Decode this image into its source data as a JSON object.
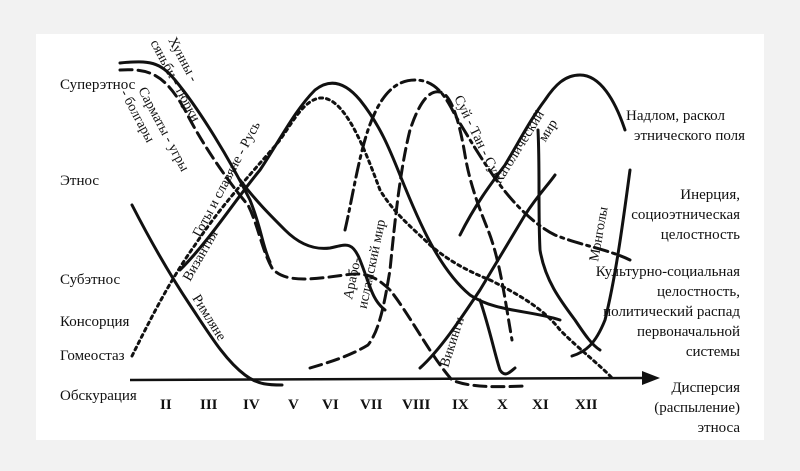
{
  "levels": [
    {
      "id": "superethnos",
      "label": "Суперэтнос"
    },
    {
      "id": "ethnos",
      "label": "Этнос"
    },
    {
      "id": "subethnos",
      "label": "Субэтнос"
    },
    {
      "id": "consortium",
      "label": "Консорция"
    },
    {
      "id": "homeostasis",
      "label": "Гомеостаз"
    },
    {
      "id": "obscuration",
      "label": "Обскурация"
    }
  ],
  "centuries": [
    "II",
    "III",
    "IV",
    "V",
    "VI",
    "VII",
    "VIII",
    "IX",
    "X",
    "XI",
    "XII"
  ],
  "phases": {
    "breakdown": [
      "Надлом, раскол",
      "этнического поля"
    ],
    "inertia": [
      "Инерция,",
      "социоэтническая",
      "целостность"
    ],
    "cultural": [
      "Культурно-социальная",
      "целостность,",
      "политический распад",
      "первоначальной",
      "системы"
    ],
    "dispersion": [
      "Дисперсия",
      "(распыление)",
      "этноса"
    ]
  },
  "curves": {
    "huns": [
      "Хунны -",
      "сяньби - тюрки"
    ],
    "sarmatians": [
      "Сарматы - угры",
      "- болгары"
    ],
    "goths": "Готы и славяне - Русь",
    "byzantium": "Византия",
    "romans": "Римляне",
    "arab": [
      "Арабо-",
      "исламский мир"
    ],
    "vikings": "Викинги",
    "sui": "Суй - Тан - Сун",
    "catholic": [
      "Католический",
      "мир"
    ],
    "mongols": "Монголы"
  },
  "colors": {
    "ink": "#111111",
    "background": "#f2f2f2",
    "panel": "#ffffff"
  }
}
